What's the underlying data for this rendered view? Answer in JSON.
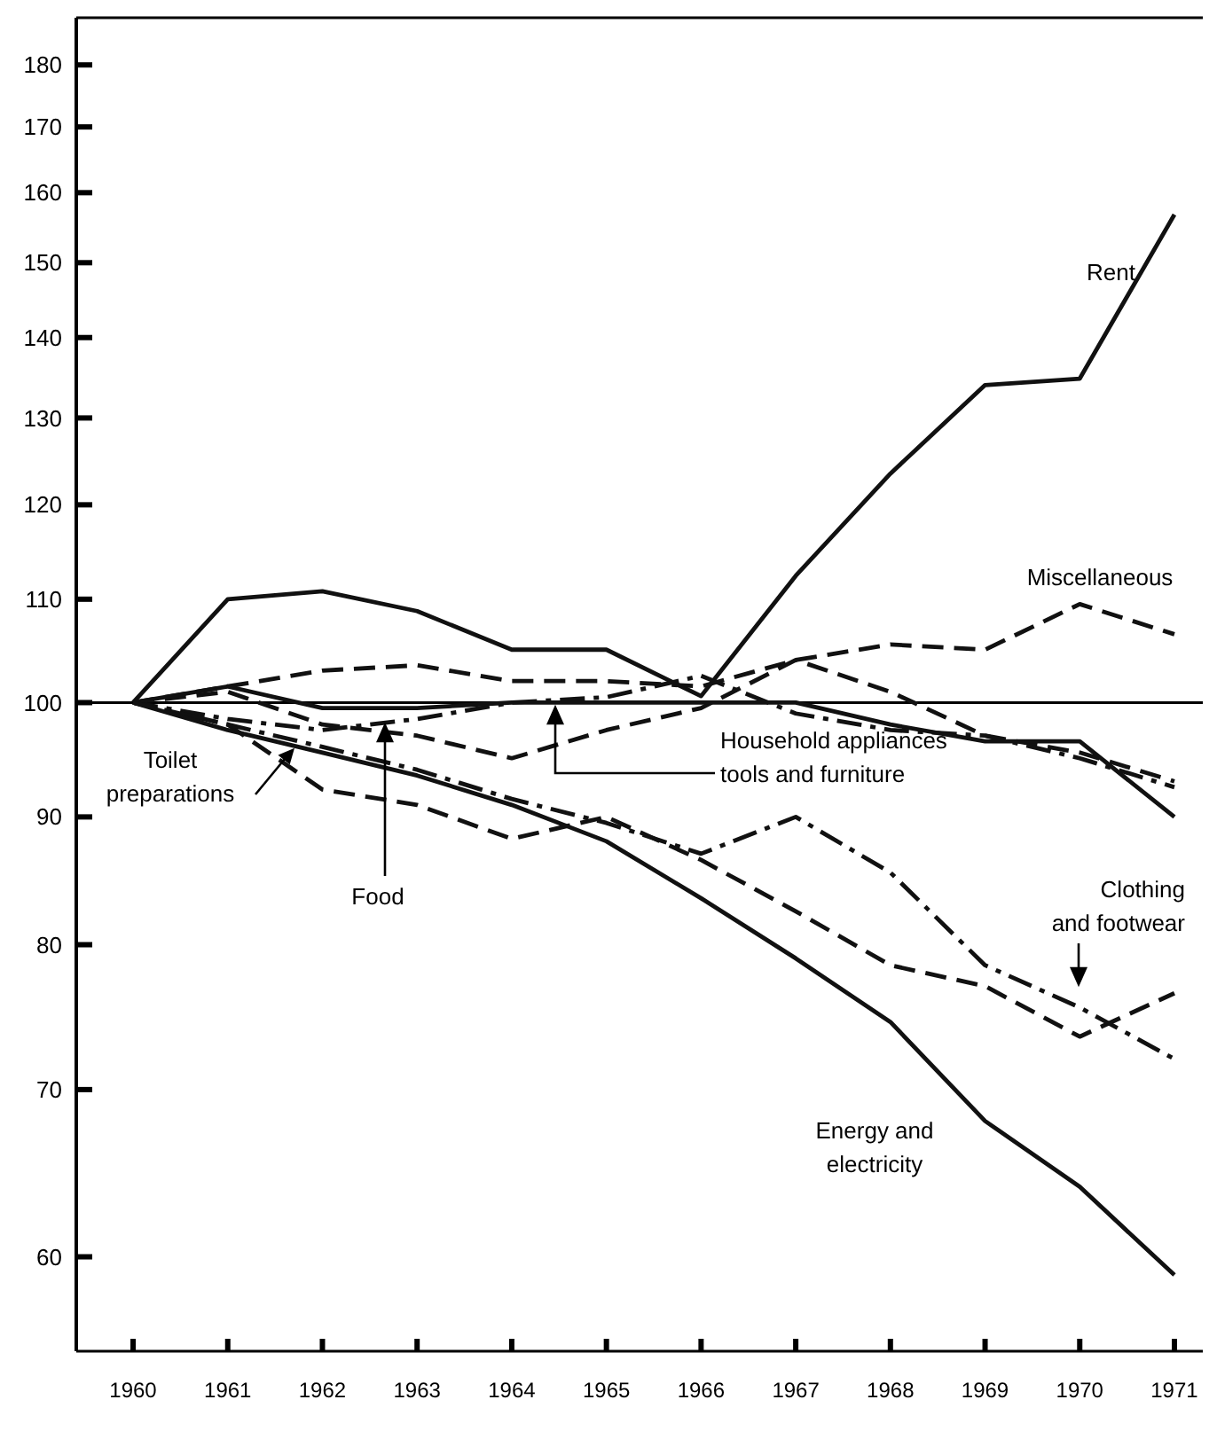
{
  "chart_data": {
    "type": "line",
    "log": true,
    "grid": false,
    "x": [
      1960,
      1961,
      1962,
      1963,
      1964,
      1965,
      1966,
      1967,
      1968,
      1969,
      1970,
      1971
    ],
    "xlim": [
      1959.4,
      1971.3
    ],
    "xticks": [
      1960,
      1961,
      1962,
      1963,
      1964,
      1965,
      1966,
      1967,
      1968,
      1969,
      1970,
      1971
    ],
    "ylim": [
      55,
      188
    ],
    "yticks": [
      60,
      70,
      80,
      90,
      100,
      110,
      120,
      130,
      140,
      150,
      160,
      170,
      180
    ],
    "ref_lines": [
      {
        "axis": "y",
        "value": 100,
        "color": "#000000",
        "line_style": "solid"
      }
    ],
    "series": [
      {
        "name": "Rent",
        "color": "#111111",
        "line_style": "solid",
        "values": [
          100,
          110,
          110.8,
          108.8,
          105,
          105,
          100.6,
          112.4,
          123.5,
          134,
          134.8,
          156.8
        ]
      },
      {
        "name": "Miscellaneous",
        "color": "#111111",
        "line_style": "dashed",
        "values": [
          100,
          101.5,
          103,
          103.5,
          102,
          102,
          101.5,
          104,
          105.5,
          105,
          109.5,
          106.5
        ]
      },
      {
        "name": "Household appliances tools and furniture",
        "color": "#111111",
        "line_style": "dashed",
        "values": [
          100,
          101,
          98,
          97,
          95,
          97.5,
          99.5,
          104,
          101,
          97,
          95.5,
          93
        ]
      },
      {
        "name": "Food",
        "color": "#111111",
        "line_style": "dashdot",
        "values": [
          100,
          98.5,
          97.5,
          98.5,
          100,
          100.5,
          102.5,
          99,
          97.5,
          97,
          95,
          92.5
        ]
      },
      {
        "color": "#111111",
        "line_style": "solid",
        "values": [
          100,
          101.5,
          99.5,
          99.5,
          100,
          100,
          100,
          100,
          98,
          96.5,
          96.5,
          90
        ]
      },
      {
        "name": "Toilet preparations",
        "color": "#111111",
        "line_style": "dashed",
        "values": [
          100,
          98,
          92.3,
          91,
          88.2,
          90,
          86.5,
          82.5,
          78.5,
          77,
          73.5,
          76.5
        ]
      },
      {
        "name": "Clothing and footwear",
        "color": "#111111",
        "line_style": "dashdot",
        "values": [
          100,
          98,
          96,
          94,
          91.5,
          89.5,
          87,
          90,
          85.5,
          78.5,
          75.5,
          72
        ]
      },
      {
        "name": "Energy and electricity",
        "color": "#111111",
        "line_style": "solid",
        "values": [
          100,
          97.5,
          95.5,
          93.5,
          91,
          88,
          83.5,
          79,
          74.5,
          68,
          64,
          59
        ]
      }
    ]
  }
}
